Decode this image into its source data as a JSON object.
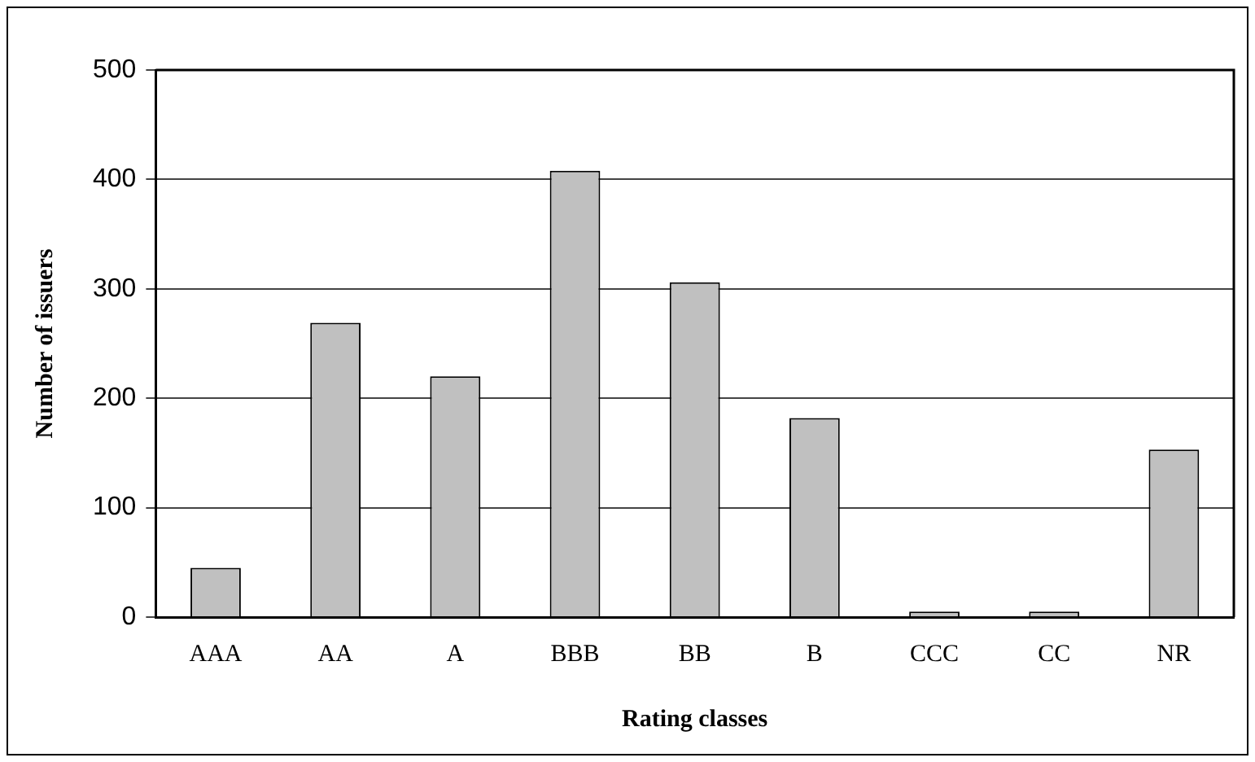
{
  "chart_data": {
    "type": "bar",
    "xlabel": "Rating classes",
    "ylabel": "Number of issuers",
    "categories": [
      "AAA",
      "AA",
      "A",
      "BBB",
      "BB",
      "B",
      "CCC",
      "CC",
      "NR"
    ],
    "values": [
      45,
      269,
      220,
      408,
      306,
      182,
      5,
      5,
      153
    ],
    "color": "#c0c0c0",
    "ylim": [
      0,
      500
    ],
    "yticks": [
      0,
      100,
      200,
      300,
      400,
      500
    ],
    "grid": "y",
    "legend": false
  }
}
